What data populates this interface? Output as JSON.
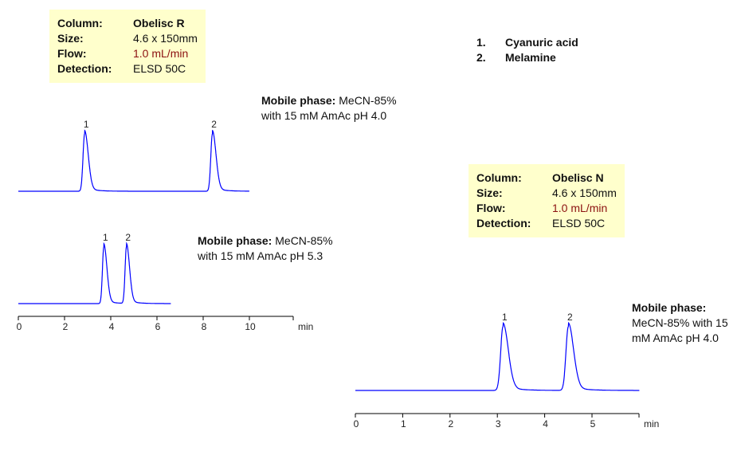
{
  "legend": [
    {
      "num": "1.",
      "name": "Cyanuric acid"
    },
    {
      "num": "2.",
      "name": "Melamine"
    }
  ],
  "panels": [
    {
      "info": [
        [
          "Column:",
          "Obelisc R"
        ],
        [
          "Size:",
          "4.6 x 150mm"
        ],
        [
          "Flow:",
          "1.0 mL/min"
        ],
        [
          "Detection:",
          "ELSD 50C"
        ]
      ]
    },
    {
      "info": [
        [
          "Column:",
          "Obelisc N"
        ],
        [
          "Size:",
          "4.6 x 150mm"
        ],
        [
          "Flow:",
          "1.0 mL/min"
        ],
        [
          "Detection:",
          "ELSD 50C"
        ]
      ]
    }
  ],
  "mobile_phases": [
    {
      "bold": "Mobile phase:",
      "text": " MeCN-85% with 15 mM AmAc pH 4.0"
    },
    {
      "bold": "Mobile phase:",
      "text": " MeCN-85% with 15 mM AmAc pH 5.3"
    },
    {
      "bold": "Mobile phase:",
      "text": " MeCN-85% with 15 mM AmAc pH 4.0"
    }
  ],
  "chart_data": [
    {
      "type": "line",
      "xlabel": "min",
      "xlim": [
        0,
        12
      ],
      "xticks": [
        0,
        2,
        4,
        6,
        8,
        10
      ],
      "x_range_trace": [
        0,
        10
      ],
      "peaks": [
        {
          "label": "1",
          "rt": 2.87
        },
        {
          "label": "2",
          "rt": 8.4
        }
      ],
      "color": "#0000ff"
    },
    {
      "type": "line",
      "xlabel": "min",
      "xlim": [
        0,
        12
      ],
      "xticks": [
        0,
        2,
        4,
        6,
        8,
        10
      ],
      "x_range_trace": [
        0,
        6.6
      ],
      "peaks": [
        {
          "label": "1",
          "rt": 3.7
        },
        {
          "label": "2",
          "rt": 4.68
        }
      ],
      "color": "#0000ff"
    },
    {
      "type": "line",
      "xlabel": "min",
      "xlim": [
        0,
        6
      ],
      "xticks": [
        0,
        1,
        2,
        3,
        4,
        5
      ],
      "x_range_trace": [
        0,
        6
      ],
      "peaks": [
        {
          "label": "1",
          "rt": 3.12
        },
        {
          "label": "2",
          "rt": 4.5
        }
      ],
      "color": "#0000ff"
    }
  ]
}
